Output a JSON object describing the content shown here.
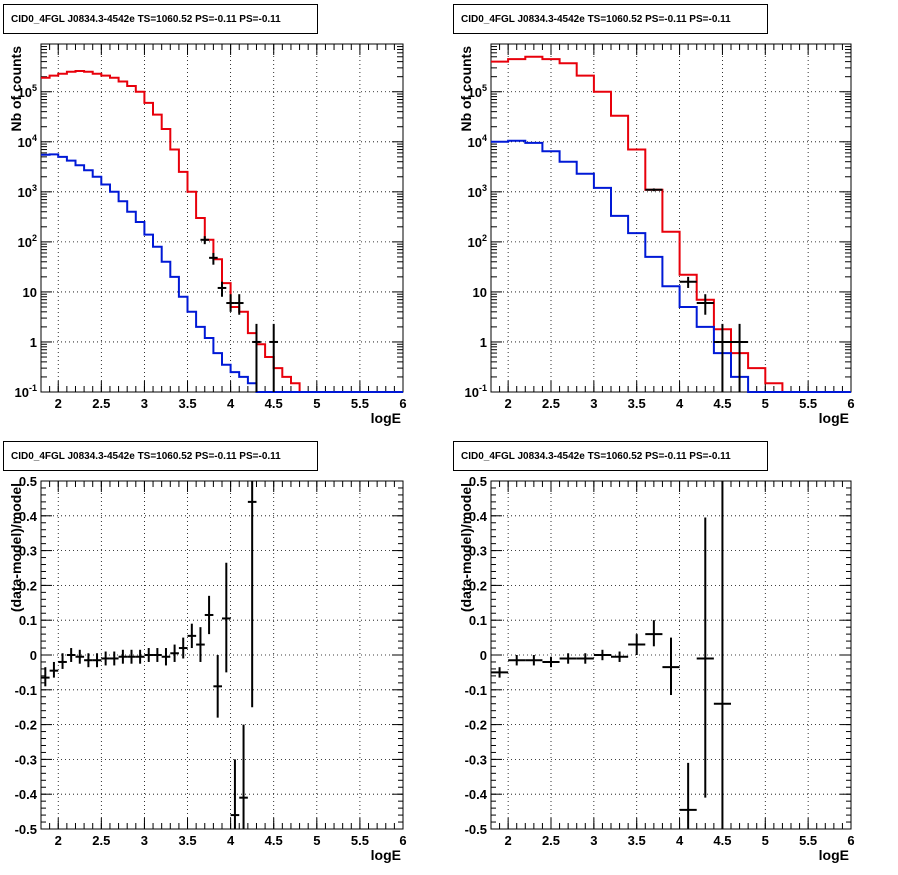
{
  "colors": {
    "model_total": "#e8000b",
    "model_source": "#0019d6",
    "data": "#000000",
    "grid": "#000000",
    "background": "#ffffff"
  },
  "chart_data": [
    {
      "type": "line",
      "title": "CID0_4FGL J0834.3-4542e TS=1060.52 PS=-0.11 PS=-0.11",
      "xlabel": "logE",
      "ylabel": "Nb of counts",
      "xlim": [
        1.8,
        6.0
      ],
      "ylim": [
        0.1,
        900000
      ],
      "yscale": "log",
      "grid": true,
      "xticks": [
        2,
        2.5,
        3,
        3.5,
        4,
        4.5,
        5,
        5.5,
        6
      ],
      "xtick_labels": [
        "2",
        "2.5",
        "3",
        "3.5",
        "4",
        "4.5",
        "5",
        "5.5",
        "6"
      ],
      "yticks": [
        0.1,
        1,
        10,
        100,
        1000,
        10000,
        100000
      ],
      "ytick_labels": [
        "10^-1",
        "1",
        "10",
        "10^2",
        "10^3",
        "10^4",
        "10^5"
      ],
      "series": [
        {
          "role": "model-total",
          "kind": "histogram",
          "edges": [
            1.8,
            1.9,
            2.0,
            2.1,
            2.2,
            2.3,
            2.4,
            2.5,
            2.6,
            2.7,
            2.8,
            2.9,
            3.0,
            3.1,
            3.2,
            3.3,
            3.4,
            3.5,
            3.6,
            3.7,
            3.8,
            3.9,
            4.0,
            4.1,
            4.2,
            4.3,
            4.4,
            4.5,
            4.6,
            4.7,
            4.8,
            4.9,
            5.0,
            6.0
          ],
          "values": [
            190000,
            210000,
            230000,
            250000,
            260000,
            250000,
            230000,
            210000,
            190000,
            160000,
            130000,
            100000,
            60000,
            35000,
            18000,
            7000,
            2500,
            1000,
            300,
            110,
            45,
            15,
            5,
            4,
            1.5,
            0.9,
            0.5,
            0.3,
            0.2,
            0.15,
            0.1,
            0.1,
            0.1
          ]
        },
        {
          "role": "model-source",
          "kind": "histogram",
          "edges": [
            1.8,
            1.9,
            2.0,
            2.1,
            2.2,
            2.3,
            2.4,
            2.5,
            2.6,
            2.7,
            2.8,
            2.9,
            3.0,
            3.1,
            3.2,
            3.3,
            3.4,
            3.5,
            3.6,
            3.7,
            3.8,
            3.9,
            4.0,
            4.1,
            4.2,
            4.3,
            4.4,
            4.5,
            4.6,
            4.7,
            4.8,
            4.9,
            5.0,
            6.0
          ],
          "values": [
            5500,
            5600,
            5000,
            4200,
            3400,
            2700,
            2000,
            1400,
            1000,
            650,
            400,
            250,
            140,
            80,
            40,
            20,
            8,
            4,
            2,
            1.2,
            0.6,
            0.35,
            0.25,
            0.2,
            0.15,
            0.1,
            0.1,
            0.1,
            0.1,
            0.1,
            0.1,
            0.1,
            0.1
          ]
        },
        {
          "role": "data",
          "kind": "errorbars",
          "points": [
            {
              "x": 3.7,
              "y": 110,
              "xerr": 0.05,
              "ylo": 90,
              "yhi": 130
            },
            {
              "x": 3.8,
              "y": 48,
              "xerr": 0.05,
              "ylo": 35,
              "yhi": 60
            },
            {
              "x": 3.9,
              "y": 12,
              "xerr": 0.05,
              "ylo": 8,
              "yhi": 16
            },
            {
              "x": 4.0,
              "y": 6,
              "xerr": 0.05,
              "ylo": 4,
              "yhi": 9
            },
            {
              "x": 4.1,
              "y": 6,
              "xerr": 0.05,
              "ylo": 3.5,
              "yhi": 9
            },
            {
              "x": 4.3,
              "y": 1,
              "xerr": 0.05,
              "ylo": 0.1,
              "yhi": 2.3
            },
            {
              "x": 4.5,
              "y": 1,
              "xerr": 0.05,
              "ylo": 0.1,
              "yhi": 2.3
            }
          ]
        }
      ]
    },
    {
      "type": "line",
      "title": "CID0_4FGL J0834.3-4542e TS=1060.52 PS=-0.11 PS=-0.11",
      "xlabel": "logE",
      "ylabel": "Nb of counts",
      "xlim": [
        1.8,
        6.0
      ],
      "ylim": [
        0.1,
        900000
      ],
      "yscale": "log",
      "grid": true,
      "xticks": [
        2,
        2.5,
        3,
        3.5,
        4,
        4.5,
        5,
        5.5,
        6
      ],
      "xtick_labels": [
        "2",
        "2.5",
        "3",
        "3.5",
        "4",
        "4.5",
        "5",
        "5.5",
        "6"
      ],
      "yticks": [
        0.1,
        1,
        10,
        100,
        1000,
        10000,
        100000
      ],
      "ytick_labels": [
        "10^-1",
        "1",
        "10",
        "10^2",
        "10^3",
        "10^4",
        "10^5"
      ],
      "series": [
        {
          "role": "model-total",
          "kind": "histogram",
          "edges": [
            1.8,
            2.0,
            2.2,
            2.4,
            2.6,
            2.8,
            3.0,
            3.2,
            3.4,
            3.6,
            3.8,
            4.0,
            4.2,
            4.4,
            4.6,
            4.8,
            5.0,
            5.2,
            6.0
          ],
          "values": [
            400000,
            450000,
            500000,
            450000,
            370000,
            210000,
            100000,
            33000,
            7000,
            1100,
            160,
            22,
            7,
            1.8,
            0.6,
            0.3,
            0.15,
            0.1
          ]
        },
        {
          "role": "model-source",
          "kind": "histogram",
          "edges": [
            1.8,
            2.0,
            2.2,
            2.4,
            2.6,
            2.8,
            3.0,
            3.2,
            3.4,
            3.6,
            3.8,
            4.0,
            4.2,
            4.4,
            4.6,
            4.8,
            5.0,
            5.2,
            6.0
          ],
          "values": [
            10000,
            10500,
            9500,
            6500,
            4000,
            2300,
            1200,
            330,
            150,
            50,
            13,
            5,
            2,
            0.6,
            0.2,
            0.1,
            0.1,
            0.1
          ]
        },
        {
          "role": "data",
          "kind": "errorbars",
          "points": [
            {
              "x": 3.7,
              "y": 1100,
              "xerr": 0.1,
              "ylo": 1030,
              "yhi": 1170
            },
            {
              "x": 4.1,
              "y": 16,
              "xerr": 0.1,
              "ylo": 12,
              "yhi": 20
            },
            {
              "x": 4.3,
              "y": 6,
              "xerr": 0.1,
              "ylo": 3.5,
              "yhi": 9
            },
            {
              "x": 4.5,
              "y": 1,
              "xerr": 0.1,
              "ylo": 0.1,
              "yhi": 2.3
            },
            {
              "x": 4.7,
              "y": 1,
              "xerr": 0.1,
              "ylo": 0.1,
              "yhi": 2.3
            }
          ]
        }
      ]
    },
    {
      "type": "scatter",
      "title": "CID0_4FGL J0834.3-4542e TS=1060.52 PS=-0.11 PS=-0.11",
      "xlabel": "logE",
      "ylabel": "(data-model)/model",
      "xlim": [
        1.8,
        6.0
      ],
      "ylim": [
        -0.5,
        0.5
      ],
      "grid": true,
      "xticks": [
        2,
        2.5,
        3,
        3.5,
        4,
        4.5,
        5,
        5.5,
        6
      ],
      "xtick_labels": [
        "2",
        "2.5",
        "3",
        "3.5",
        "4",
        "4.5",
        "5",
        "5.5",
        "6"
      ],
      "yticks": [
        -0.5,
        -0.4,
        -0.3,
        -0.2,
        -0.1,
        0,
        0.1,
        0.2,
        0.3,
        0.4,
        0.5
      ],
      "ytick_labels": [
        "-0.5",
        "-0.4",
        "-0.3",
        "-0.2",
        "-0.1",
        "0",
        "0.1",
        "0.2",
        "0.3",
        "0.4",
        "0.5"
      ],
      "series": [
        {
          "role": "data",
          "kind": "errorbars",
          "points": [
            {
              "x": 1.85,
              "y": -0.065,
              "xerr": 0.05,
              "ylo": -0.09,
              "yhi": -0.035
            },
            {
              "x": 1.95,
              "y": -0.045,
              "xerr": 0.05,
              "ylo": -0.065,
              "yhi": -0.02
            },
            {
              "x": 2.05,
              "y": -0.02,
              "xerr": 0.05,
              "ylo": -0.04,
              "yhi": 0.005
            },
            {
              "x": 2.15,
              "y": 0.0,
              "xerr": 0.05,
              "ylo": -0.02,
              "yhi": 0.02
            },
            {
              "x": 2.25,
              "y": -0.005,
              "xerr": 0.05,
              "ylo": -0.025,
              "yhi": 0.015
            },
            {
              "x": 2.35,
              "y": -0.015,
              "xerr": 0.05,
              "ylo": -0.035,
              "yhi": 0.005
            },
            {
              "x": 2.45,
              "y": -0.015,
              "xerr": 0.05,
              "ylo": -0.035,
              "yhi": 0.005
            },
            {
              "x": 2.55,
              "y": -0.01,
              "xerr": 0.05,
              "ylo": -0.03,
              "yhi": 0.01
            },
            {
              "x": 2.65,
              "y": -0.01,
              "xerr": 0.05,
              "ylo": -0.03,
              "yhi": 0.01
            },
            {
              "x": 2.75,
              "y": -0.005,
              "xerr": 0.05,
              "ylo": -0.025,
              "yhi": 0.015
            },
            {
              "x": 2.85,
              "y": -0.005,
              "xerr": 0.05,
              "ylo": -0.025,
              "yhi": 0.015
            },
            {
              "x": 2.95,
              "y": -0.005,
              "xerr": 0.05,
              "ylo": -0.025,
              "yhi": 0.015
            },
            {
              "x": 3.05,
              "y": 0.0,
              "xerr": 0.05,
              "ylo": -0.02,
              "yhi": 0.02
            },
            {
              "x": 3.15,
              "y": 0.0,
              "xerr": 0.05,
              "ylo": -0.02,
              "yhi": 0.02
            },
            {
              "x": 3.25,
              "y": -0.005,
              "xerr": 0.05,
              "ylo": -0.03,
              "yhi": 0.02
            },
            {
              "x": 3.35,
              "y": 0.005,
              "xerr": 0.05,
              "ylo": -0.02,
              "yhi": 0.03
            },
            {
              "x": 3.45,
              "y": 0.02,
              "xerr": 0.05,
              "ylo": -0.01,
              "yhi": 0.05
            },
            {
              "x": 3.55,
              "y": 0.055,
              "xerr": 0.05,
              "ylo": 0.02,
              "yhi": 0.09
            },
            {
              "x": 3.65,
              "y": 0.03,
              "xerr": 0.05,
              "ylo": -0.02,
              "yhi": 0.08
            },
            {
              "x": 3.75,
              "y": 0.115,
              "xerr": 0.05,
              "ylo": 0.06,
              "yhi": 0.17
            },
            {
              "x": 3.85,
              "y": -0.09,
              "xerr": 0.05,
              "ylo": -0.18,
              "yhi": 0.0
            },
            {
              "x": 3.95,
              "y": 0.105,
              "xerr": 0.05,
              "ylo": -0.05,
              "yhi": 0.265
            },
            {
              "x": 4.05,
              "y": -0.46,
              "xerr": 0.05,
              "ylo": -0.5,
              "yhi": -0.3
            },
            {
              "x": 4.15,
              "y": -0.41,
              "xerr": 0.05,
              "ylo": -0.5,
              "yhi": -0.2
            },
            {
              "x": 4.25,
              "y": 0.44,
              "xerr": 0.05,
              "ylo": -0.15,
              "yhi": 0.5
            }
          ]
        }
      ]
    },
    {
      "type": "scatter",
      "title": "CID0_4FGL J0834.3-4542e TS=1060.52 PS=-0.11 PS=-0.11",
      "xlabel": "logE",
      "ylabel": "(data-model)/model",
      "xlim": [
        1.8,
        6.0
      ],
      "ylim": [
        -0.5,
        0.5
      ],
      "grid": true,
      "xticks": [
        2,
        2.5,
        3,
        3.5,
        4,
        4.5,
        5,
        5.5,
        6
      ],
      "xtick_labels": [
        "2",
        "2.5",
        "3",
        "3.5",
        "4",
        "4.5",
        "5",
        "5.5",
        "6"
      ],
      "yticks": [
        -0.5,
        -0.4,
        -0.3,
        -0.2,
        -0.1,
        0,
        0.1,
        0.2,
        0.3,
        0.4,
        0.5
      ],
      "ytick_labels": [
        "-0.5",
        "-0.4",
        "-0.3",
        "-0.2",
        "-0.1",
        "0",
        "0.1",
        "0.2",
        "0.3",
        "0.4",
        "0.5"
      ],
      "series": [
        {
          "role": "data",
          "kind": "errorbars",
          "points": [
            {
              "x": 1.9,
              "y": -0.05,
              "xerr": 0.1,
              "ylo": -0.065,
              "yhi": -0.035
            },
            {
              "x": 2.1,
              "y": -0.015,
              "xerr": 0.1,
              "ylo": -0.03,
              "yhi": 0.0
            },
            {
              "x": 2.3,
              "y": -0.015,
              "xerr": 0.1,
              "ylo": -0.03,
              "yhi": 0.0
            },
            {
              "x": 2.5,
              "y": -0.02,
              "xerr": 0.1,
              "ylo": -0.035,
              "yhi": -0.005
            },
            {
              "x": 2.7,
              "y": -0.01,
              "xerr": 0.1,
              "ylo": -0.025,
              "yhi": 0.005
            },
            {
              "x": 2.9,
              "y": -0.01,
              "xerr": 0.1,
              "ylo": -0.025,
              "yhi": 0.005
            },
            {
              "x": 3.1,
              "y": 0.0,
              "xerr": 0.1,
              "ylo": -0.015,
              "yhi": 0.015
            },
            {
              "x": 3.3,
              "y": -0.005,
              "xerr": 0.1,
              "ylo": -0.02,
              "yhi": 0.01
            },
            {
              "x": 3.5,
              "y": 0.03,
              "xerr": 0.1,
              "ylo": 0.0,
              "yhi": 0.06
            },
            {
              "x": 3.7,
              "y": 0.06,
              "xerr": 0.1,
              "ylo": 0.025,
              "yhi": 0.1
            },
            {
              "x": 3.9,
              "y": -0.035,
              "xerr": 0.1,
              "ylo": -0.115,
              "yhi": 0.05
            },
            {
              "x": 4.1,
              "y": -0.445,
              "xerr": 0.1,
              "ylo": -0.5,
              "yhi": -0.31
            },
            {
              "x": 4.3,
              "y": -0.01,
              "xerr": 0.1,
              "ylo": -0.41,
              "yhi": 0.395
            },
            {
              "x": 4.5,
              "y": -0.14,
              "xerr": 0.1,
              "ylo": -0.5,
              "yhi": 0.5
            }
          ]
        }
      ]
    }
  ]
}
